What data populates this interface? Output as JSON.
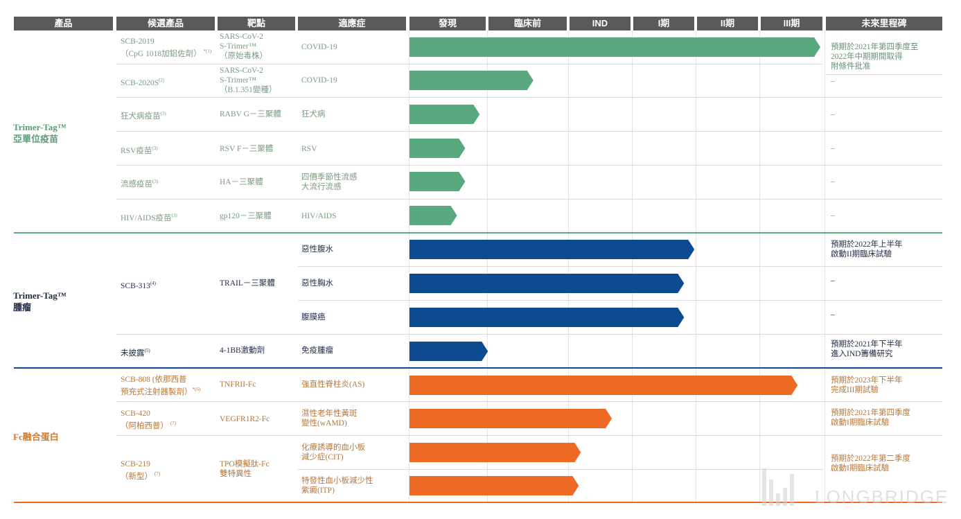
{
  "headers": {
    "product": "產品",
    "candidate": "候選產品",
    "target": "靶點",
    "indication": "適應症",
    "discovery": "發現",
    "preclinical": "臨床前",
    "ind": "IND",
    "phase1": "I期",
    "phase2": "II期",
    "phase3": "III期",
    "milestone": "未來里程碑"
  },
  "stages": [
    "發現",
    "臨床前",
    "IND",
    "I期",
    "II期",
    "III期"
  ],
  "colors": {
    "green": "#5aa87e",
    "blue": "#0d4a8f",
    "orange": "#ee6a24",
    "header": "#5a5a5a"
  },
  "groups": [
    {
      "l1": "Trimer-Tag™",
      "l2": "亞單位疫苗"
    },
    {
      "l1": "Trimer-Tag™",
      "l2": "腫瘤"
    },
    {
      "l1": "Fc融合蛋白",
      "l2": ""
    }
  ],
  "rows": [
    {
      "cand": "SCB-2019",
      "cand2": "（CpG 1018加鋁佐劑）",
      "sup": "*(1)",
      "target": "SARS-CoV-2",
      "target2": "S-Trimer™",
      "target3": "（原始毒株）",
      "ind": "COVID-19",
      "ind2": "",
      "progress": 0.995,
      "color": "green",
      "ms1": "預期於2021年第四季度至",
      "ms2": "2022年中期期間取得",
      "ms3": "附條件批准"
    },
    {
      "cand": "SCB-2020S",
      "cand2": "",
      "sup": "(2)",
      "target": "SARS-CoV-2",
      "target2": "S-Trimer™",
      "target3": "（B.1.351變種）",
      "ind": "COVID-19",
      "ind2": "",
      "progress": 0.3,
      "color": "green",
      "ms1": "–",
      "ms2": "",
      "ms3": ""
    },
    {
      "cand": "狂犬病疫苗",
      "cand2": "",
      "sup": "(3)",
      "target": "RABV G－三聚體",
      "target2": "",
      "target3": "",
      "ind": "狂犬病",
      "ind2": "",
      "progress": 0.17,
      "color": "green",
      "ms1": "–",
      "ms2": "",
      "ms3": ""
    },
    {
      "cand": "RSV疫苗",
      "cand2": "",
      "sup": "(3)",
      "target": "RSV F－三聚體",
      "target2": "",
      "target3": "",
      "ind": "RSV",
      "ind2": "",
      "progress": 0.135,
      "color": "green",
      "ms1": "–",
      "ms2": "",
      "ms3": ""
    },
    {
      "cand": "流感疫苗",
      "cand2": "",
      "sup": "(3)",
      "target": "HA－三聚體",
      "target2": "",
      "target3": "",
      "ind": "四價季節性流感",
      "ind2": "大流行流感",
      "progress": 0.135,
      "color": "green",
      "ms1": "–",
      "ms2": "",
      "ms3": ""
    },
    {
      "cand": "HIV/AIDS疫苗",
      "cand2": "",
      "sup": "(3)",
      "target": "gp120－三聚體",
      "target2": "",
      "target3": "",
      "ind": "HIV/AIDS",
      "ind2": "",
      "progress": 0.115,
      "color": "green",
      "ms1": "–",
      "ms2": "",
      "ms3": ""
    },
    {
      "cand": "SCB-313",
      "cand2": "",
      "sup": "(4)",
      "target": "TRAIL－三聚體",
      "target2": "",
      "target3": "",
      "ind": "惡性腹水",
      "ind2": "",
      "progress": 0.69,
      "color": "blue",
      "ms1": "預期於2022年上半年",
      "ms2": "啟動II期臨床試驗",
      "ms3": ""
    },
    {
      "cand": "",
      "cand2": "",
      "sup": "",
      "target": "",
      "target2": "",
      "target3": "",
      "ind": "惡性胸水",
      "ind2": "",
      "progress": 0.665,
      "color": "blue",
      "ms1": "–",
      "ms2": "",
      "ms3": ""
    },
    {
      "cand": "",
      "cand2": "",
      "sup": "",
      "target": "",
      "target2": "",
      "target3": "",
      "ind": "腹膜癌",
      "ind2": "",
      "progress": 0.665,
      "color": "blue",
      "ms1": "–",
      "ms2": "",
      "ms3": ""
    },
    {
      "cand": "未披露",
      "cand2": "",
      "sup": "(5)",
      "target": "4-1BB激動劑",
      "target2": "",
      "target3": "",
      "ind": "免疫腫瘤",
      "ind2": "",
      "progress": 0.19,
      "color": "blue",
      "ms1": "預期於2021年下半年",
      "ms2": "進入IND籌備研究",
      "ms3": ""
    },
    {
      "cand": "SCB-808 (依那西普",
      "cand2": "預充式注射器製劑）",
      "sup": "*(6)",
      "target": "TNFRII-Fc",
      "target2": "",
      "target3": "",
      "ind": "強直性脊柱炎(AS)",
      "ind2": "",
      "progress": 0.94,
      "color": "orange",
      "ms1": "預期於2023年下半年",
      "ms2": "完成III期試驗",
      "ms3": ""
    },
    {
      "cand": "SCB-420",
      "cand2": "（阿柏西普）",
      "sup": "(7)",
      "target": "VEGFR1R2-Fc",
      "target2": "",
      "target3": "",
      "ind": "濕性老年性黃斑",
      "ind2": "變性(wAMD)",
      "progress": 0.49,
      "color": "orange",
      "ms1": "預期於2021年第四季度",
      "ms2": "啟動I期臨床試驗",
      "ms3": ""
    },
    {
      "cand": "SCB-219",
      "cand2": "（新型）",
      "sup": "(7)",
      "target": "TPO模擬肽-Fc",
      "target2": "雙特異性",
      "target3": "",
      "ind": "化療誘導的血小板",
      "ind2": "減少症(CIT)",
      "progress": 0.415,
      "color": "orange",
      "ms1": "預期於2022年第二季度",
      "ms2": "啟動I期臨床試驗",
      "ms3": ""
    },
    {
      "cand": "",
      "cand2": "",
      "sup": "",
      "target": "",
      "target2": "",
      "target3": "",
      "ind": "特發性血小板減少性",
      "ind2": "紫癜(ITP)",
      "progress": 0.41,
      "color": "orange",
      "ms1": "",
      "ms2": "",
      "ms3": ""
    }
  ],
  "watermark": "LONGBRIDGE"
}
